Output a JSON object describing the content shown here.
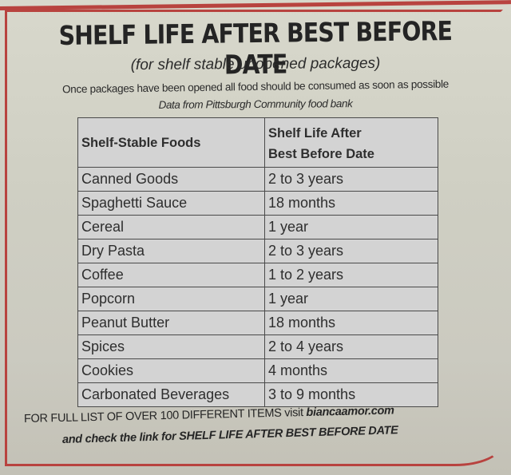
{
  "header": {
    "title": "SHELF LIFE AFTER BEST BEFORE DATE",
    "subtitle": "(for shelf stable unopened packages)",
    "note": "Once packages have been opened  all food should be consumed as soon as possible",
    "source": "Data from Pittsburgh Community food bank"
  },
  "table": {
    "columns": [
      "Shelf-Stable Foods",
      "Shelf Life After Best Before Date"
    ],
    "column_lines": {
      "col2_line1": "Shelf Life After",
      "col2_line2": "Best Before Date"
    },
    "rows": [
      {
        "food": "Canned Goods",
        "shelf_life": "2 to 3 years"
      },
      {
        "food": "Spaghetti Sauce",
        "shelf_life": "18 months"
      },
      {
        "food": "Cereal",
        "shelf_life": "1 year"
      },
      {
        "food": "Dry Pasta",
        "shelf_life": "2 to 3 years"
      },
      {
        "food": "Coffee",
        "shelf_life": "1 to 2 years"
      },
      {
        "food": "Popcorn",
        "shelf_life": "1 year"
      },
      {
        "food": "Peanut Butter",
        "shelf_life": "18 months"
      },
      {
        "food": "Spices",
        "shelf_life": "2 to 4 years"
      },
      {
        "food": "Cookies",
        "shelf_life": "4 months"
      },
      {
        "food": "Carbonated Beverages",
        "shelf_life": "3 to 9 months"
      }
    ]
  },
  "footer": {
    "line1_text": "FOR FULL LIST OF OVER  100 DIFFERENT ITEMS   visit ",
    "line1_site": "biancaamor.com",
    "line2": "and check the link for SHELF LIFE AFTER BEST BEFORE DATE"
  },
  "colors": {
    "frame_red": "#b8433f",
    "paper": "#d3d3c8",
    "ink": "#2a2a2a"
  }
}
